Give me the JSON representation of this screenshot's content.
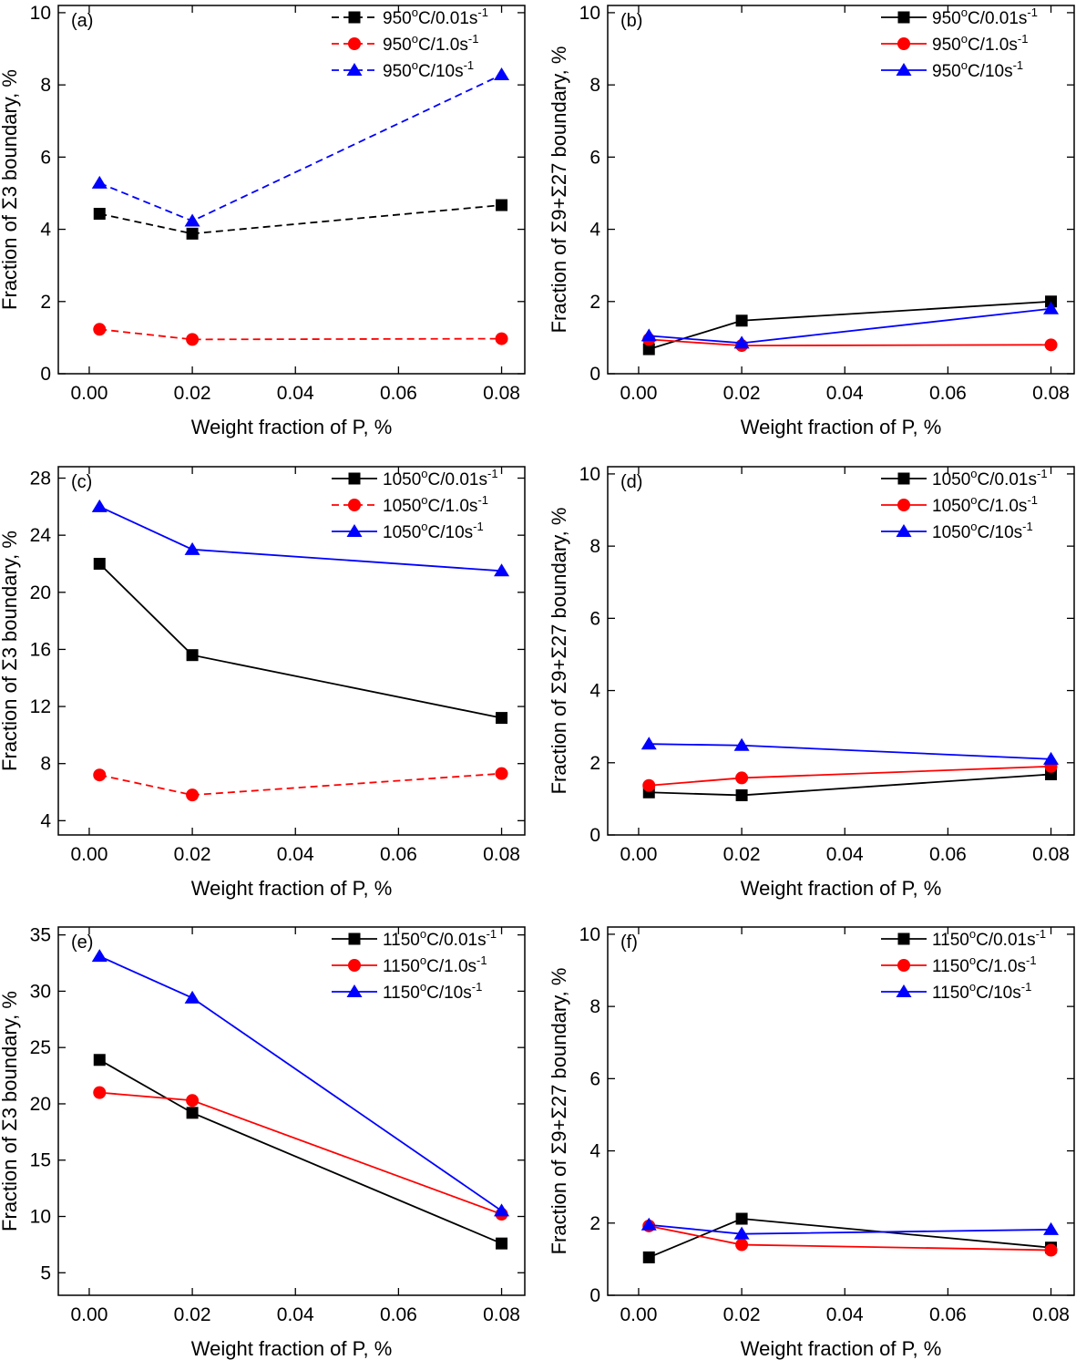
{
  "chart_data": [
    {
      "panel": "(a)",
      "type": "line",
      "xlabel": "Weight fraction of P, %",
      "ylabel": "Fraction of Σ3 boundary, %",
      "xlim": [
        -0.006,
        0.0845
      ],
      "ylim": [
        0,
        10.2
      ],
      "xticks": [
        0.0,
        0.02,
        0.04,
        0.06,
        0.08
      ],
      "xtick_labels": [
        "0.00",
        "0.02",
        "0.04",
        "0.06",
        "0.08"
      ],
      "yticks": [
        0,
        2,
        4,
        6,
        8,
        10
      ],
      "ytick_labels": [
        "0",
        "2",
        "4",
        "6",
        "8",
        "10"
      ],
      "legend_position": "top-right",
      "series": [
        {
          "temp": "950",
          "rate": "/0.01s",
          "exp": "-1",
          "color": "#000000",
          "marker": "square",
          "dash": true,
          "x": [
            0.002,
            0.02,
            0.08
          ],
          "y": [
            4.43,
            3.88,
            4.67
          ]
        },
        {
          "temp": "950",
          "rate": "/1.0s",
          "exp": "-1",
          "color": "#ff0000",
          "marker": "circle",
          "dash": true,
          "x": [
            0.002,
            0.02,
            0.08
          ],
          "y": [
            1.23,
            0.95,
            0.97
          ]
        },
        {
          "temp": "950",
          "rate": "/10s",
          "exp": "-1",
          "color": "#0000ff",
          "marker": "triangle",
          "dash": true,
          "x": [
            0.002,
            0.02,
            0.08
          ],
          "y": [
            5.28,
            4.23,
            8.28
          ]
        }
      ]
    },
    {
      "panel": "(b)",
      "type": "line",
      "xlabel": "Weight fraction of P, %",
      "ylabel": "Fraction of Σ9+Σ27 boundary, %",
      "xlim": [
        -0.006,
        0.0845
      ],
      "ylim": [
        0,
        10.2
      ],
      "xticks": [
        0.0,
        0.02,
        0.04,
        0.06,
        0.08
      ],
      "xtick_labels": [
        "0.00",
        "0.02",
        "0.04",
        "0.06",
        "0.08"
      ],
      "yticks": [
        0,
        2,
        4,
        6,
        8,
        10
      ],
      "ytick_labels": [
        "0",
        "2",
        "4",
        "6",
        "8",
        "10"
      ],
      "legend_position": "top-right",
      "series": [
        {
          "temp": "950",
          "rate": "/0.01s",
          "exp": "-1",
          "color": "#000000",
          "marker": "square",
          "dash": false,
          "x": [
            0.002,
            0.02,
            0.08
          ],
          "y": [
            0.68,
            1.47,
            2.0
          ]
        },
        {
          "temp": "950",
          "rate": "/1.0s",
          "exp": "-1",
          "color": "#ff0000",
          "marker": "circle",
          "dash": false,
          "x": [
            0.002,
            0.02,
            0.08
          ],
          "y": [
            0.95,
            0.78,
            0.8
          ]
        },
        {
          "temp": "950",
          "rate": "/10s",
          "exp": "-1",
          "color": "#0000ff",
          "marker": "triangle",
          "dash": false,
          "x": [
            0.002,
            0.02,
            0.08
          ],
          "y": [
            1.05,
            0.85,
            1.8
          ]
        }
      ]
    },
    {
      "panel": "(c)",
      "type": "line",
      "xlabel": "Weight fraction of P, %",
      "ylabel": "Fraction of Σ3 boundary, %",
      "xlim": [
        -0.006,
        0.0845
      ],
      "ylim": [
        3,
        28.8
      ],
      "xticks": [
        0.0,
        0.02,
        0.04,
        0.06,
        0.08
      ],
      "xtick_labels": [
        "0.00",
        "0.02",
        "0.04",
        "0.06",
        "0.08"
      ],
      "yticks": [
        4,
        8,
        12,
        16,
        20,
        24,
        28
      ],
      "ytick_labels": [
        "4",
        "8",
        "12",
        "16",
        "20",
        "24",
        "28"
      ],
      "legend_position": "top-right",
      "series": [
        {
          "temp": "1050",
          "rate": "/0.01s",
          "exp": "-1",
          "color": "#000000",
          "marker": "square",
          "dash": false,
          "x": [
            0.002,
            0.02,
            0.08
          ],
          "y": [
            22.0,
            15.6,
            11.2
          ]
        },
        {
          "temp": "1050",
          "rate": "/1.0s",
          "exp": "-1",
          "color": "#ff0000",
          "marker": "circle",
          "dash": true,
          "x": [
            0.002,
            0.02,
            0.08
          ],
          "y": [
            7.2,
            5.8,
            7.3
          ]
        },
        {
          "temp": "1050",
          "rate": "/10s",
          "exp": "-1",
          "color": "#0000ff",
          "marker": "triangle",
          "dash": false,
          "x": [
            0.002,
            0.02,
            0.08
          ],
          "y": [
            26.0,
            23.0,
            21.5
          ]
        }
      ]
    },
    {
      "panel": "(d)",
      "type": "line",
      "xlabel": "Weight fraction of P, %",
      "ylabel": "Fraction of Σ9+Σ27 boundary, %",
      "xlim": [
        -0.006,
        0.0845
      ],
      "ylim": [
        0,
        10.2
      ],
      "xticks": [
        0.0,
        0.02,
        0.04,
        0.06,
        0.08
      ],
      "xtick_labels": [
        "0.00",
        "0.02",
        "0.04",
        "0.06",
        "0.08"
      ],
      "yticks": [
        0,
        2,
        4,
        6,
        8,
        10
      ],
      "ytick_labels": [
        "0",
        "2",
        "4",
        "6",
        "8",
        "10"
      ],
      "legend_position": "top-right",
      "series": [
        {
          "temp": "1050",
          "rate": "/0.01s",
          "exp": "-1",
          "color": "#000000",
          "marker": "square",
          "dash": false,
          "x": [
            0.002,
            0.02,
            0.08
          ],
          "y": [
            1.18,
            1.1,
            1.68
          ]
        },
        {
          "temp": "1050",
          "rate": "/1.0s",
          "exp": "-1",
          "color": "#ff0000",
          "marker": "circle",
          "dash": false,
          "x": [
            0.002,
            0.02,
            0.08
          ],
          "y": [
            1.37,
            1.58,
            1.9
          ]
        },
        {
          "temp": "1050",
          "rate": "/10s",
          "exp": "-1",
          "color": "#0000ff",
          "marker": "triangle",
          "dash": false,
          "x": [
            0.002,
            0.02,
            0.08
          ],
          "y": [
            2.52,
            2.48,
            2.1
          ]
        }
      ]
    },
    {
      "panel": "(e)",
      "type": "line",
      "xlabel": "Weight fraction of P, %",
      "ylabel": "Fraction of Σ3 boundary, %",
      "xlim": [
        -0.006,
        0.0845
      ],
      "ylim": [
        3,
        35.7
      ],
      "xticks": [
        0.0,
        0.02,
        0.04,
        0.06,
        0.08
      ],
      "xtick_labels": [
        "0.00",
        "0.02",
        "0.04",
        "0.06",
        "0.08"
      ],
      "yticks": [
        5,
        10,
        15,
        20,
        25,
        30,
        35
      ],
      "ytick_labels": [
        "5",
        "10",
        "15",
        "20",
        "25",
        "30",
        "35"
      ],
      "legend_position": "top-right",
      "series": [
        {
          "temp": "1150",
          "rate": "/0.01s",
          "exp": "-1",
          "color": "#000000",
          "marker": "square",
          "dash": false,
          "x": [
            0.002,
            0.02,
            0.08
          ],
          "y": [
            23.9,
            19.2,
            7.6
          ]
        },
        {
          "temp": "1150",
          "rate": "/1.0s",
          "exp": "-1",
          "color": "#ff0000",
          "marker": "circle",
          "dash": false,
          "x": [
            0.002,
            0.02,
            0.08
          ],
          "y": [
            21.0,
            20.3,
            10.2
          ]
        },
        {
          "temp": "1150",
          "rate": "/10s",
          "exp": "-1",
          "color": "#0000ff",
          "marker": "triangle",
          "dash": false,
          "x": [
            0.002,
            0.02,
            0.08
          ],
          "y": [
            33.1,
            29.4,
            10.5
          ]
        }
      ]
    },
    {
      "panel": "(f)",
      "type": "line",
      "xlabel": "Weight fraction of P, %",
      "ylabel": "Fraction of Σ9+Σ27 boundary, %",
      "xlim": [
        -0.006,
        0.0845
      ],
      "ylim": [
        0,
        10.2
      ],
      "xticks": [
        0.0,
        0.02,
        0.04,
        0.06,
        0.08
      ],
      "xtick_labels": [
        "0.00",
        "0.02",
        "0.04",
        "0.06",
        "0.08"
      ],
      "yticks": [
        0,
        2,
        4,
        6,
        8,
        10
      ],
      "ytick_labels": [
        "0",
        "2",
        "4",
        "6",
        "8",
        "10"
      ],
      "legend_position": "top-right",
      "series": [
        {
          "temp": "1150",
          "rate": "/0.01s",
          "exp": "-1",
          "color": "#000000",
          "marker": "square",
          "dash": false,
          "x": [
            0.002,
            0.02,
            0.08
          ],
          "y": [
            1.05,
            2.12,
            1.32
          ]
        },
        {
          "temp": "1150",
          "rate": "/1.0s",
          "exp": "-1",
          "color": "#ff0000",
          "marker": "circle",
          "dash": false,
          "x": [
            0.002,
            0.02,
            0.08
          ],
          "y": [
            1.92,
            1.4,
            1.25
          ]
        },
        {
          "temp": "1150",
          "rate": "/10s",
          "exp": "-1",
          "color": "#0000ff",
          "marker": "triangle",
          "dash": false,
          "x": [
            0.002,
            0.02,
            0.08
          ],
          "y": [
            1.95,
            1.7,
            1.82
          ]
        }
      ]
    }
  ]
}
